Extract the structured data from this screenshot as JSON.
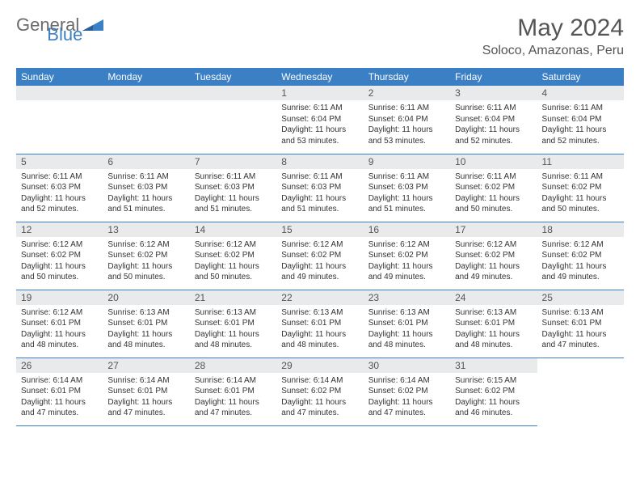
{
  "logo": {
    "text1": "General",
    "text2": "Blue"
  },
  "title": "May 2024",
  "location": "Soloco, Amazonas, Peru",
  "colors": {
    "header_bg": "#3b7fc4",
    "header_text": "#ffffff",
    "daynum_bg": "#e8eaec",
    "border": "#3b7fc4",
    "logo_gray": "#6b6b6b",
    "logo_blue": "#3b7fc4"
  },
  "day_headers": [
    "Sunday",
    "Monday",
    "Tuesday",
    "Wednesday",
    "Thursday",
    "Friday",
    "Saturday"
  ],
  "weeks": [
    [
      {
        "n": "",
        "empty": true
      },
      {
        "n": "",
        "empty": true
      },
      {
        "n": "",
        "empty": true
      },
      {
        "n": "1",
        "sunrise": "6:11 AM",
        "sunset": "6:04 PM",
        "daylight": "11 hours and 53 minutes."
      },
      {
        "n": "2",
        "sunrise": "6:11 AM",
        "sunset": "6:04 PM",
        "daylight": "11 hours and 53 minutes."
      },
      {
        "n": "3",
        "sunrise": "6:11 AM",
        "sunset": "6:04 PM",
        "daylight": "11 hours and 52 minutes."
      },
      {
        "n": "4",
        "sunrise": "6:11 AM",
        "sunset": "6:04 PM",
        "daylight": "11 hours and 52 minutes."
      }
    ],
    [
      {
        "n": "5",
        "sunrise": "6:11 AM",
        "sunset": "6:03 PM",
        "daylight": "11 hours and 52 minutes."
      },
      {
        "n": "6",
        "sunrise": "6:11 AM",
        "sunset": "6:03 PM",
        "daylight": "11 hours and 51 minutes."
      },
      {
        "n": "7",
        "sunrise": "6:11 AM",
        "sunset": "6:03 PM",
        "daylight": "11 hours and 51 minutes."
      },
      {
        "n": "8",
        "sunrise": "6:11 AM",
        "sunset": "6:03 PM",
        "daylight": "11 hours and 51 minutes."
      },
      {
        "n": "9",
        "sunrise": "6:11 AM",
        "sunset": "6:03 PM",
        "daylight": "11 hours and 51 minutes."
      },
      {
        "n": "10",
        "sunrise": "6:11 AM",
        "sunset": "6:02 PM",
        "daylight": "11 hours and 50 minutes."
      },
      {
        "n": "11",
        "sunrise": "6:11 AM",
        "sunset": "6:02 PM",
        "daylight": "11 hours and 50 minutes."
      }
    ],
    [
      {
        "n": "12",
        "sunrise": "6:12 AM",
        "sunset": "6:02 PM",
        "daylight": "11 hours and 50 minutes."
      },
      {
        "n": "13",
        "sunrise": "6:12 AM",
        "sunset": "6:02 PM",
        "daylight": "11 hours and 50 minutes."
      },
      {
        "n": "14",
        "sunrise": "6:12 AM",
        "sunset": "6:02 PM",
        "daylight": "11 hours and 50 minutes."
      },
      {
        "n": "15",
        "sunrise": "6:12 AM",
        "sunset": "6:02 PM",
        "daylight": "11 hours and 49 minutes."
      },
      {
        "n": "16",
        "sunrise": "6:12 AM",
        "sunset": "6:02 PM",
        "daylight": "11 hours and 49 minutes."
      },
      {
        "n": "17",
        "sunrise": "6:12 AM",
        "sunset": "6:02 PM",
        "daylight": "11 hours and 49 minutes."
      },
      {
        "n": "18",
        "sunrise": "6:12 AM",
        "sunset": "6:02 PM",
        "daylight": "11 hours and 49 minutes."
      }
    ],
    [
      {
        "n": "19",
        "sunrise": "6:12 AM",
        "sunset": "6:01 PM",
        "daylight": "11 hours and 48 minutes."
      },
      {
        "n": "20",
        "sunrise": "6:13 AM",
        "sunset": "6:01 PM",
        "daylight": "11 hours and 48 minutes."
      },
      {
        "n": "21",
        "sunrise": "6:13 AM",
        "sunset": "6:01 PM",
        "daylight": "11 hours and 48 minutes."
      },
      {
        "n": "22",
        "sunrise": "6:13 AM",
        "sunset": "6:01 PM",
        "daylight": "11 hours and 48 minutes."
      },
      {
        "n": "23",
        "sunrise": "6:13 AM",
        "sunset": "6:01 PM",
        "daylight": "11 hours and 48 minutes."
      },
      {
        "n": "24",
        "sunrise": "6:13 AM",
        "sunset": "6:01 PM",
        "daylight": "11 hours and 48 minutes."
      },
      {
        "n": "25",
        "sunrise": "6:13 AM",
        "sunset": "6:01 PM",
        "daylight": "11 hours and 47 minutes."
      }
    ],
    [
      {
        "n": "26",
        "sunrise": "6:14 AM",
        "sunset": "6:01 PM",
        "daylight": "11 hours and 47 minutes."
      },
      {
        "n": "27",
        "sunrise": "6:14 AM",
        "sunset": "6:01 PM",
        "daylight": "11 hours and 47 minutes."
      },
      {
        "n": "28",
        "sunrise": "6:14 AM",
        "sunset": "6:01 PM",
        "daylight": "11 hours and 47 minutes."
      },
      {
        "n": "29",
        "sunrise": "6:14 AM",
        "sunset": "6:02 PM",
        "daylight": "11 hours and 47 minutes."
      },
      {
        "n": "30",
        "sunrise": "6:14 AM",
        "sunset": "6:02 PM",
        "daylight": "11 hours and 47 minutes."
      },
      {
        "n": "31",
        "sunrise": "6:15 AM",
        "sunset": "6:02 PM",
        "daylight": "11 hours and 46 minutes."
      },
      {
        "n": "",
        "empty": true,
        "trailing": true
      }
    ]
  ],
  "labels": {
    "sunrise": "Sunrise:",
    "sunset": "Sunset:",
    "daylight": "Daylight:"
  }
}
